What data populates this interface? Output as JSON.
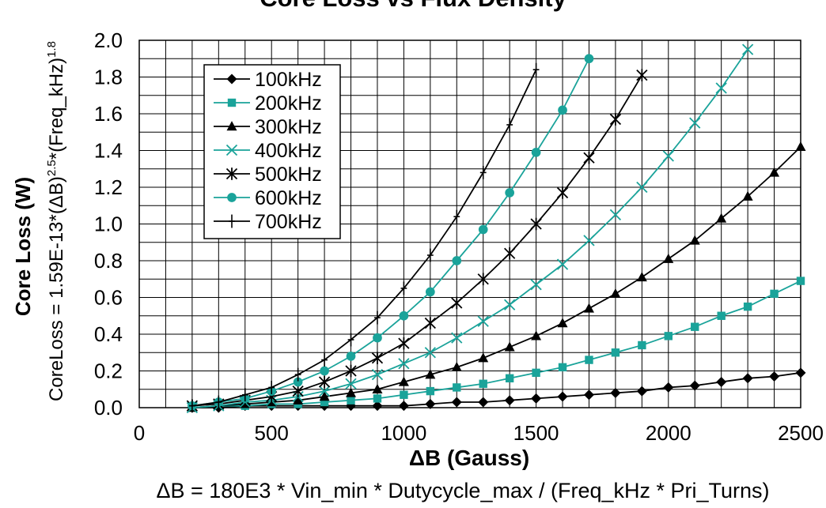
{
  "chart_data": {
    "type": "line",
    "title": "Core Loss vs Flux Density",
    "xlabel": "ΔB (Gauss)",
    "ylabel": "Core Loss (W)",
    "ylabel_formula_main": "CoreLoss = 1.59E-13*(ΔB)",
    "ylabel_formula_exp1": "2.5",
    "ylabel_formula_mid": "*(Freq_kHz)",
    "ylabel_formula_exp2": "1.8",
    "xlabel_formula": "ΔB = 180E3 * Vin_min * Dutycycle_max / (Freq_kHz * Pri_Turns)",
    "xlim": [
      0,
      2500
    ],
    "ylim": [
      0,
      2.0
    ],
    "x_ticks": [
      0,
      500,
      1000,
      1500,
      2000,
      2500
    ],
    "x_tick_labels": [
      "0",
      "500",
      "1000",
      "1500",
      "2000",
      "2500"
    ],
    "y_ticks": [
      0,
      0.2,
      0.4,
      0.6,
      0.8,
      1.0,
      1.2,
      1.4,
      1.6,
      1.8,
      2.0
    ],
    "y_tick_labels": [
      "0.0",
      "0.2",
      "0.4",
      "0.6",
      "0.8",
      "1.0",
      "1.2",
      "1.4",
      "1.6",
      "1.8",
      "2.0"
    ],
    "x_minor_step": 100,
    "y_minor_step": 0.1,
    "grid": true,
    "legend_position": "upper-left",
    "series": [
      {
        "name": "100kHz",
        "color": "#000000",
        "marker": "diamond",
        "x": [
          200,
          300,
          400,
          500,
          600,
          700,
          800,
          900,
          1000,
          1100,
          1200,
          1300,
          1400,
          1500,
          1600,
          1700,
          1800,
          1900,
          2000,
          2100,
          2200,
          2300,
          2400,
          2500
        ],
        "y": [
          0.0,
          0.0,
          0.01,
          0.01,
          0.01,
          0.01,
          0.01,
          0.01,
          0.01,
          0.02,
          0.03,
          0.03,
          0.04,
          0.05,
          0.06,
          0.07,
          0.08,
          0.09,
          0.11,
          0.12,
          0.14,
          0.16,
          0.17,
          0.19
        ]
      },
      {
        "name": "200kHz",
        "color": "#1aa39a",
        "marker": "square",
        "x": [
          200,
          300,
          400,
          500,
          600,
          700,
          800,
          900,
          1000,
          1100,
          1200,
          1300,
          1400,
          1500,
          1600,
          1700,
          1800,
          1900,
          2000,
          2100,
          2200,
          2300,
          2400,
          2500
        ],
        "y": [
          0.0,
          0.01,
          0.01,
          0.02,
          0.02,
          0.03,
          0.04,
          0.05,
          0.07,
          0.09,
          0.11,
          0.13,
          0.16,
          0.19,
          0.22,
          0.26,
          0.3,
          0.34,
          0.39,
          0.44,
          0.5,
          0.55,
          0.62,
          0.69
        ]
      },
      {
        "name": "300kHz",
        "color": "#000000",
        "marker": "triangle",
        "x": [
          200,
          300,
          400,
          500,
          600,
          700,
          800,
          900,
          1000,
          1100,
          1200,
          1300,
          1400,
          1500,
          1600,
          1700,
          1800,
          1900,
          2000,
          2100,
          2200,
          2300,
          2400,
          2500
        ],
        "y": [
          0.0,
          0.01,
          0.02,
          0.03,
          0.04,
          0.06,
          0.08,
          0.1,
          0.14,
          0.18,
          0.22,
          0.27,
          0.33,
          0.39,
          0.46,
          0.54,
          0.62,
          0.71,
          0.81,
          0.91,
          1.03,
          1.15,
          1.28,
          1.42
        ]
      },
      {
        "name": "400kHz",
        "color": "#1aa39a",
        "marker": "x",
        "x": [
          200,
          300,
          400,
          500,
          600,
          700,
          800,
          900,
          1000,
          1100,
          1200,
          1300,
          1400,
          1500,
          1600,
          1700,
          1800,
          1900,
          2000,
          2100,
          2200,
          2300
        ],
        "y": [
          0.0,
          0.01,
          0.03,
          0.04,
          0.06,
          0.09,
          0.13,
          0.18,
          0.24,
          0.3,
          0.38,
          0.47,
          0.56,
          0.67,
          0.78,
          0.91,
          1.05,
          1.2,
          1.37,
          1.55,
          1.74,
          1.95
        ]
      },
      {
        "name": "500kHz",
        "color": "#000000",
        "marker": "asterisk",
        "x": [
          200,
          300,
          400,
          500,
          600,
          700,
          800,
          900,
          1000,
          1100,
          1200,
          1300,
          1400,
          1500,
          1600,
          1700,
          1800,
          1900
        ],
        "y": [
          0.01,
          0.02,
          0.04,
          0.06,
          0.09,
          0.14,
          0.2,
          0.27,
          0.35,
          0.46,
          0.57,
          0.7,
          0.84,
          1.0,
          1.17,
          1.36,
          1.57,
          1.81
        ]
      },
      {
        "name": "600kHz",
        "color": "#1aa39a",
        "marker": "circle",
        "x": [
          200,
          300,
          400,
          500,
          600,
          700,
          800,
          900,
          1000,
          1100,
          1200,
          1300,
          1400,
          1500,
          1600,
          1700
        ],
        "y": [
          0.01,
          0.03,
          0.05,
          0.09,
          0.14,
          0.2,
          0.28,
          0.38,
          0.5,
          0.63,
          0.8,
          0.97,
          1.17,
          1.39,
          1.62,
          1.9
        ]
      },
      {
        "name": "700kHz",
        "color": "#000000",
        "marker": "plus",
        "x": [
          200,
          300,
          400,
          500,
          600,
          700,
          800,
          900,
          1000,
          1100,
          1200,
          1300,
          1400,
          1500
        ],
        "y": [
          0.01,
          0.03,
          0.07,
          0.11,
          0.18,
          0.26,
          0.37,
          0.49,
          0.65,
          0.83,
          1.04,
          1.28,
          1.54,
          1.84
        ]
      }
    ]
  }
}
